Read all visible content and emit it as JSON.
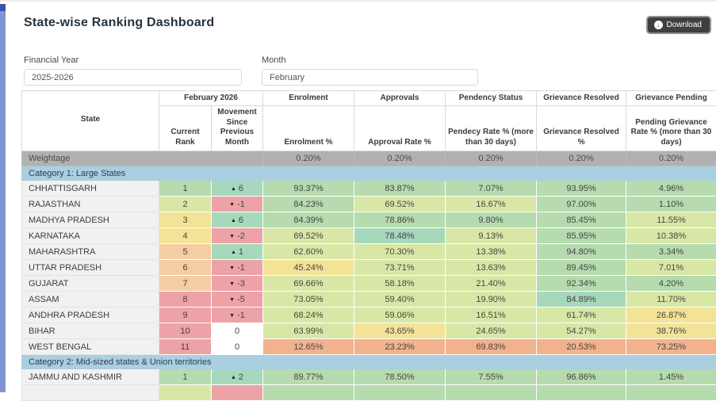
{
  "page": {
    "title": "State-wise Ranking Dashboard",
    "download_label": "Download"
  },
  "filters": {
    "financial_year": {
      "label": "Financial Year",
      "value": "2025-2026"
    },
    "month": {
      "label": "Month",
      "value": "February"
    }
  },
  "colors": {
    "green": "#b5dbae",
    "teal_green": "#a6d8bb",
    "yellow_green": "#d9e7a6",
    "yellow": "#f3e396",
    "peach": "#f5cda3",
    "orange": "#f2b28e",
    "red": "#eda2a7",
    "white": "#ffffff",
    "weightage_bg": "#b1b1b1",
    "category_bg": "#a9cfe0",
    "state_cell_bg": "#f1f1f1",
    "left_strip": "#8093d4"
  },
  "table": {
    "month_group_header": "February 2026",
    "group_headers": [
      "Enrolment",
      "Approvals",
      "Pendency Status",
      "Grievance Resolved",
      "Grievance Pending"
    ],
    "col_headers": [
      "State",
      "Current Rank",
      "Movement Since Previous Month",
      "Enrolment %",
      "Approval Rate %",
      "Pendecy Rate % (more than 30 days)",
      "Grievance Resolved %",
      "Pending Grievance Rate % (more than 30 days)"
    ],
    "weightage": {
      "label": "Weightage",
      "values": [
        "0.20%",
        "0.20%",
        "0.20%",
        "0.20%",
        "0.20%"
      ]
    },
    "categories": [
      {
        "label": "Category 1: Large States",
        "rows": [
          {
            "state": "CHHATTISGARH",
            "rank": "1",
            "rank_color": "green",
            "movement": "6",
            "movement_dir": "up",
            "movement_color": "teal_green",
            "values": [
              "93.37%",
              "83.87%",
              "7.07%",
              "93.95%",
              "4.96%"
            ],
            "value_colors": [
              "green",
              "green",
              "green",
              "green",
              "green"
            ]
          },
          {
            "state": "RAJASTHAN",
            "rank": "2",
            "rank_color": "yellow_green",
            "movement": "-1",
            "movement_dir": "down",
            "movement_color": "red",
            "values": [
              "84.23%",
              "69.52%",
              "16.67%",
              "97.00%",
              "1.10%"
            ],
            "value_colors": [
              "green",
              "yellow_green",
              "yellow_green",
              "green",
              "green"
            ]
          },
          {
            "state": "MADHYA PRADESH",
            "rank": "3",
            "rank_color": "yellow",
            "movement": "6",
            "movement_dir": "up",
            "movement_color": "teal_green",
            "values": [
              "84.39%",
              "78.86%",
              "9.80%",
              "85.45%",
              "11.55%"
            ],
            "value_colors": [
              "green",
              "green",
              "green",
              "green",
              "yellow_green"
            ]
          },
          {
            "state": "KARNATAKA",
            "rank": "4",
            "rank_color": "yellow",
            "movement": "-2",
            "movement_dir": "down",
            "movement_color": "red",
            "values": [
              "69.52%",
              "78.48%",
              "9.13%",
              "85.95%",
              "10.38%"
            ],
            "value_colors": [
              "yellow_green",
              "teal_green",
              "yellow_green",
              "green",
              "yellow_green"
            ]
          },
          {
            "state": "MAHARASHTRA",
            "rank": "5",
            "rank_color": "peach",
            "movement": "1",
            "movement_dir": "up",
            "movement_color": "teal_green",
            "values": [
              "62.60%",
              "70.30%",
              "13.38%",
              "94.80%",
              "3.34%"
            ],
            "value_colors": [
              "yellow_green",
              "yellow_green",
              "yellow_green",
              "green",
              "green"
            ]
          },
          {
            "state": "UTTAR PRADESH",
            "rank": "6",
            "rank_color": "peach",
            "movement": "-1",
            "movement_dir": "down",
            "movement_color": "red",
            "values": [
              "45.24%",
              "73.71%",
              "13.63%",
              "89.45%",
              "7.01%"
            ],
            "value_colors": [
              "yellow",
              "yellow_green",
              "yellow_green",
              "green",
              "yellow_green"
            ]
          },
          {
            "state": "GUJARAT",
            "rank": "7",
            "rank_color": "peach",
            "movement": "-3",
            "movement_dir": "down",
            "movement_color": "red",
            "values": [
              "69.66%",
              "58.18%",
              "21.40%",
              "92.34%",
              "4.20%"
            ],
            "value_colors": [
              "yellow_green",
              "yellow_green",
              "yellow_green",
              "green",
              "green"
            ]
          },
          {
            "state": "ASSAM",
            "rank": "8",
            "rank_color": "red",
            "movement": "-5",
            "movement_dir": "down",
            "movement_color": "red",
            "values": [
              "73.05%",
              "59.40%",
              "19.90%",
              "84.89%",
              "11.70%"
            ],
            "value_colors": [
              "yellow_green",
              "yellow_green",
              "yellow_green",
              "teal_green",
              "yellow_green"
            ]
          },
          {
            "state": "ANDHRA PRADESH",
            "rank": "9",
            "rank_color": "red",
            "movement": "-1",
            "movement_dir": "down",
            "movement_color": "red",
            "values": [
              "68.24%",
              "59.06%",
              "16.51%",
              "61.74%",
              "26.87%"
            ],
            "value_colors": [
              "yellow_green",
              "yellow_green",
              "yellow_green",
              "yellow_green",
              "yellow"
            ]
          },
          {
            "state": "BIHAR",
            "rank": "10",
            "rank_color": "red",
            "movement": "0",
            "movement_dir": "none",
            "movement_color": "white",
            "values": [
              "63.99%",
              "43.65%",
              "24.65%",
              "54.27%",
              "38.76%"
            ],
            "value_colors": [
              "yellow_green",
              "yellow",
              "yellow_green",
              "yellow_green",
              "yellow"
            ]
          },
          {
            "state": "WEST BENGAL",
            "rank": "11",
            "rank_color": "red",
            "movement": "0",
            "movement_dir": "none",
            "movement_color": "white",
            "values": [
              "12.65%",
              "23.23%",
              "69.83%",
              "20.53%",
              "73.25%"
            ],
            "value_colors": [
              "orange",
              "orange",
              "orange",
              "orange",
              "orange"
            ]
          }
        ]
      },
      {
        "label": "Category 2: Mid-sized states & Union territories",
        "rows": [
          {
            "state": "JAMMU AND KASHMIR",
            "rank": "1",
            "rank_color": "green",
            "movement": "2",
            "movement_dir": "up",
            "movement_color": "teal_green",
            "values": [
              "89.77%",
              "78.50%",
              "7.55%",
              "96.86%",
              "1.45%"
            ],
            "value_colors": [
              "green",
              "green",
              "green",
              "green",
              "green"
            ]
          }
        ]
      }
    ],
    "partial_next_row": {
      "rank_color": "yellow_green",
      "movement_color": "red",
      "value_colors": [
        "green",
        "green",
        "green",
        "green",
        "green"
      ]
    }
  }
}
